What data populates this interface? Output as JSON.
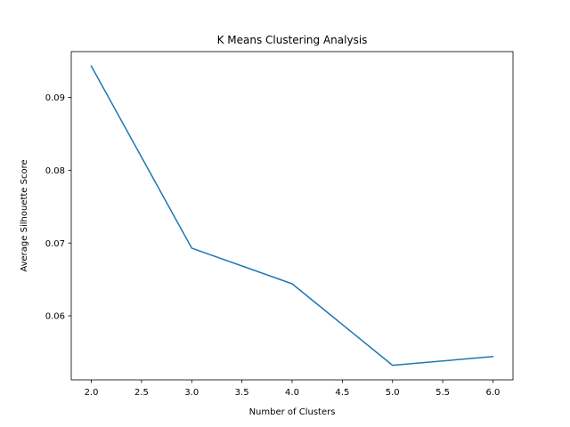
{
  "chart_data": {
    "type": "line",
    "title": "K Means Clustering Analysis",
    "xlabel": "Number of Clusters",
    "ylabel": "Average Silhouette Score",
    "x": [
      2,
      3,
      4,
      5,
      6
    ],
    "series": [
      {
        "name": "Average Silhouette Score",
        "values": [
          0.0943,
          0.0693,
          0.0644,
          0.0532,
          0.0544
        ],
        "color": "#1f77b4"
      }
    ],
    "xlim": [
      1.8,
      6.2
    ],
    "ylim": [
      0.0512,
      0.0963
    ],
    "xticks": [
      2.0,
      2.5,
      3.0,
      3.5,
      4.0,
      4.5,
      5.0,
      5.5,
      6.0
    ],
    "xtick_labels": [
      "2.0",
      "2.5",
      "3.0",
      "3.5",
      "4.0",
      "4.5",
      "5.0",
      "5.5",
      "6.0"
    ],
    "yticks": [
      0.06,
      0.07,
      0.08,
      0.09
    ],
    "ytick_labels": [
      "0.06",
      "0.07",
      "0.08",
      "0.09"
    ],
    "grid": false,
    "legend": "none"
  }
}
